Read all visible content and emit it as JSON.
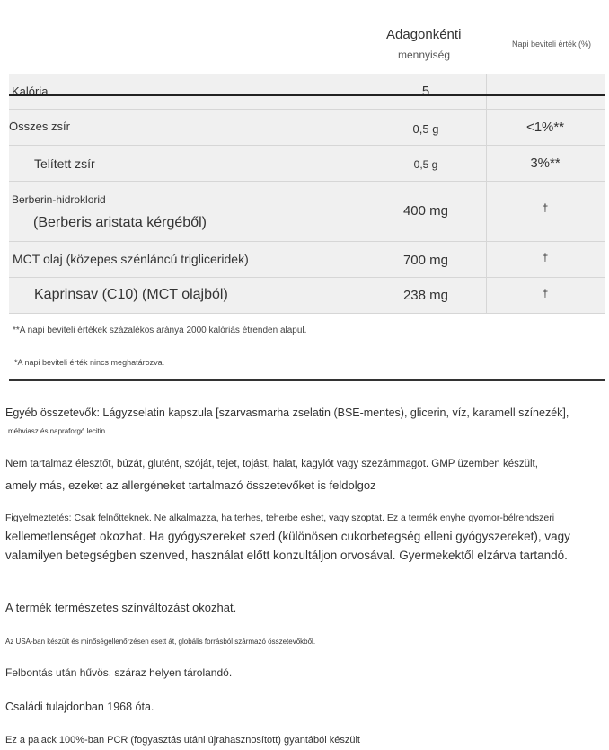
{
  "header": {
    "amount_line1": "Adagonkénti",
    "amount_line2": "mennyiség",
    "daily_value": "Napi beviteli érték (%)"
  },
  "rows": [
    {
      "name": "Kalória",
      "amount": "5",
      "dv": ""
    },
    {
      "name": "Összes zsír",
      "amount": "0,5 g",
      "dv": "<1%**"
    },
    {
      "name": "Telített zsír",
      "amount": "0,5 g",
      "dv": "3%**"
    },
    {
      "name": "Berberin-hidroklorid",
      "sub": "(Berberis aristata kérgéből)",
      "amount": "400 mg",
      "dv": "†"
    },
    {
      "name": "MCT olaj (közepes szénláncú trigliceridek)",
      "amount": "700 mg",
      "dv": "†"
    },
    {
      "name": "Kaprinsav (C10) (MCT olajból)",
      "amount": "238 mg",
      "dv": "†"
    }
  ],
  "footnotes": [
    "**A napi beviteli értékek százalékos aránya 2000 kalóriás étrenden alapul.",
    "*A napi beviteli érték nincs meghatározva."
  ],
  "text": {
    "other_ingredients_1": "Egyéb összetevők: Lágyzselatin kapszula [szarvasmarha zselatin (BSE-mentes), glicerin, víz, karamell színezék],",
    "other_ingredients_2": "méhviasz és napraforgó lecitin.",
    "allergen_1": "Nem tartalmaz élesztőt, búzát, glutént, szóját, tejet, tojást, halat, kagylót vagy szezámmagot. GMP üzemben készült,",
    "allergen_2": "amely más, ezeket az allergéneket tartalmazó összetevőket is feldolgoz",
    "warning_1": "Figyelmeztetés: Csak felnőtteknek. Ne alkalmazza, ha terhes, teherbe eshet, vagy szoptat. Ez a termék enyhe gyomor-bélrendszeri",
    "warning_2": "kellemetlenséget okozhat. Ha gyógyszereket szed (különösen cukorbetegség elleni gyógyszereket), vagy",
    "warning_3": "valamilyen betegségben szenved, használat előtt konzultáljon orvosával. Gyermekektől elzárva tartandó.",
    "color_change": "A termék természetes színváltozást okozhat.",
    "made_in": "Az USA-ban készült és minőségellenőrzésen esett át, globális forrásból származó összetevőkből.",
    "storage": "Felbontás után hűvös, száraz helyen tárolandó.",
    "family": "Családi tulajdonban 1968 óta.",
    "bottle": "Ez a palack 100%-ban PCR (fogyasztás utáni újrahasznosított) gyantából készült"
  }
}
